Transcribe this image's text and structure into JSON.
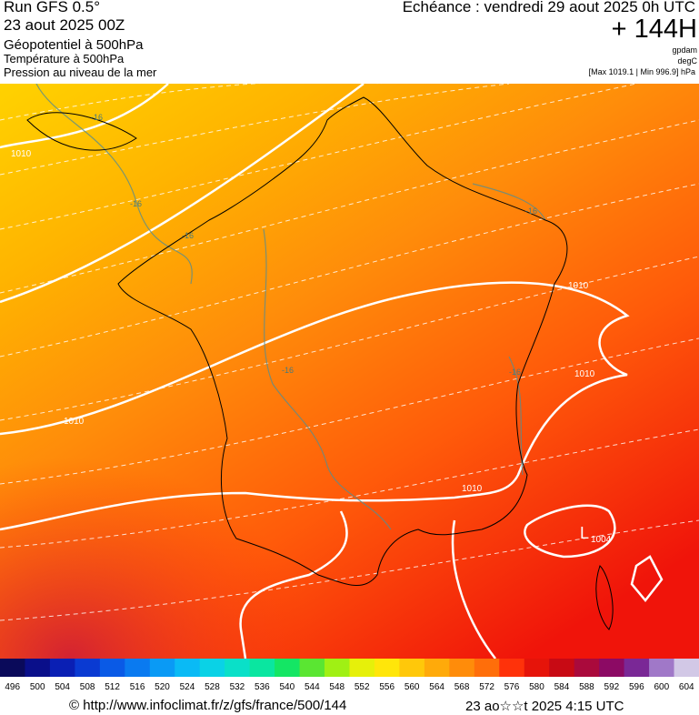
{
  "header": {
    "run": "Run GFS 0.5°",
    "date": "23 aout 2025 00Z",
    "field1": "Géopotentiel à 500hPa",
    "field2": "Température à 500hPa",
    "field3": "Pression au niveau de la mer",
    "echeance": "Echéance : vendredi 29 aout 2025 0h UTC",
    "lead": "+ 144H",
    "unit1": "gpdam",
    "unit2": "degC",
    "range": "[Max 1019.1 | Min 996.9] hPa"
  },
  "map": {
    "isobar_labels": [
      "1010",
      "1010",
      "1010",
      "1010",
      "1010",
      "1004"
    ],
    "low_label": "L",
    "temp_labels": [
      "-16",
      "-16",
      "-16",
      "-16",
      "-16",
      "-16"
    ]
  },
  "colorbar": {
    "ticks": [
      496,
      500,
      504,
      508,
      512,
      516,
      520,
      524,
      528,
      532,
      536,
      540,
      544,
      548,
      552,
      556,
      560,
      564,
      568,
      572,
      576,
      580,
      584,
      588,
      592,
      596,
      600,
      604
    ],
    "colors": [
      "#0a0a5a",
      "#0a0f8a",
      "#0a1fb4",
      "#0a3ad2",
      "#0a5ae6",
      "#0a7af0",
      "#0a9af5",
      "#0abaf5",
      "#0ad2e6",
      "#0ae0c8",
      "#0ae6a0",
      "#14e664",
      "#5ae632",
      "#a0f014",
      "#e6f00a",
      "#ffe60a",
      "#ffc80a",
      "#ffaa0a",
      "#ff8c0a",
      "#ff6e0a",
      "#ff320a",
      "#e6140a",
      "#c80a14",
      "#aa0a3c",
      "#8c0a64",
      "#7a2896",
      "#a078c8",
      "#d2c8e6"
    ]
  },
  "footer": {
    "url": "© http://www.infoclimat.fr/z/gfs/france/500/144",
    "stamp": "23 ao☆☆t 2025  4:15 UTC"
  }
}
